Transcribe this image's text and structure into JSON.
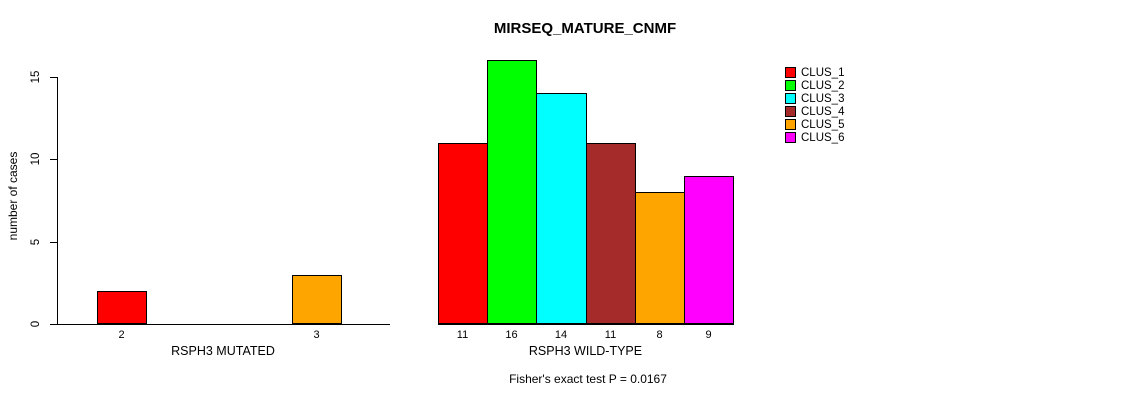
{
  "chart_data": {
    "type": "bar",
    "title": "MIRSEQ_MATURE_CNMF",
    "ylabel": "number of cases",
    "ylim": [
      0,
      16
    ],
    "yticks": [
      0,
      5,
      10,
      15
    ],
    "grid": false,
    "legend_position": "top-right",
    "categories": [
      "RSPH3 MUTATED",
      "RSPH3 WILD-TYPE"
    ],
    "series": [
      {
        "name": "CLUS_1",
        "color": "#FF0000",
        "values": [
          2,
          11
        ]
      },
      {
        "name": "CLUS_2",
        "color": "#00FF00",
        "values": [
          0,
          16
        ]
      },
      {
        "name": "CLUS_3",
        "color": "#00FFFF",
        "values": [
          0,
          14
        ]
      },
      {
        "name": "CLUS_4",
        "color": "#A52A2A",
        "values": [
          0,
          11
        ]
      },
      {
        "name": "CLUS_5",
        "color": "#FFA500",
        "values": [
          3,
          8
        ]
      },
      {
        "name": "CLUS_6",
        "color": "#FF00FF",
        "values": [
          0,
          9
        ]
      }
    ],
    "bar_value_labels_shown": true,
    "zero_bars_hidden": true,
    "annotation": "Fisher's exact test P = 0.0167"
  }
}
